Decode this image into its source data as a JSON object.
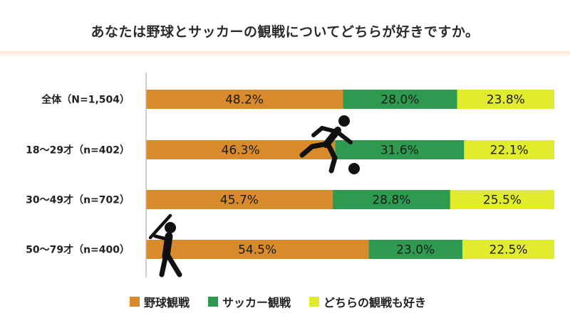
{
  "colors": {
    "baseball": "#d98a2b",
    "soccer": "#2e9a4f",
    "both": "#e1ec2c"
  },
  "icons": [
    "soccer-player-icon",
    "baseball-batter-icon"
  ],
  "chart_data": {
    "type": "bar",
    "orientation": "horizontal",
    "stacked": true,
    "title": "あなたは野球とサッカーの観戦についてどちらが好きですか。",
    "categories": [
      "全体（N=1,504）",
      "18～29才（n=402）",
      "30～49才（n=702）",
      "50～79才（n=400）"
    ],
    "series": [
      {
        "name": "野球観戦",
        "values": [
          48.2,
          46.3,
          45.7,
          54.5
        ],
        "labels": [
          "48.2%",
          "46.3%",
          "45.7%",
          "54.5%"
        ]
      },
      {
        "name": "サッカー観戦",
        "values": [
          28.0,
          31.6,
          28.8,
          23.0
        ],
        "labels": [
          "28.0%",
          "31.6%",
          "28.8%",
          "23.0%"
        ]
      },
      {
        "name": "どちらの観戦も好き",
        "values": [
          23.8,
          22.1,
          25.5,
          22.5
        ],
        "labels": [
          "23.8%",
          "22.1%",
          "25.5%",
          "22.5%"
        ]
      }
    ],
    "xlim": [
      0,
      100
    ],
    "legend_position": "bottom",
    "grid": false
  }
}
